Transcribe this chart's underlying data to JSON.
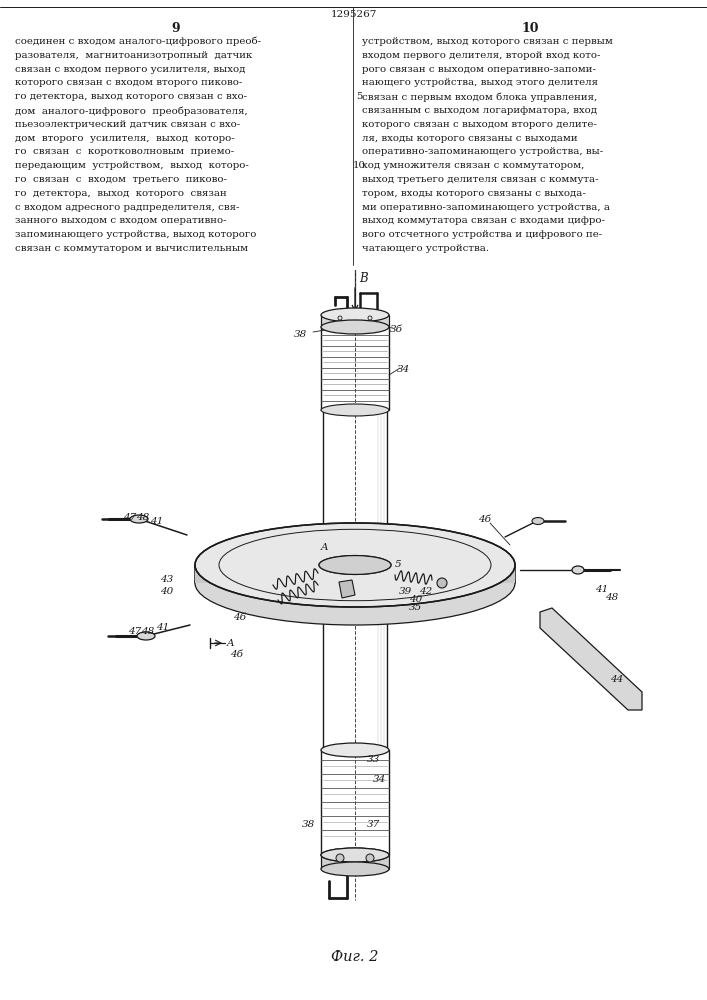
{
  "page_number_left": "9",
  "page_number_right": "10",
  "patent_number": "1295267",
  "left_text_lines": [
    "соединен с входом аналого-цифрового преоб-",
    "разователя,  магнитоанизотропный  датчик",
    "связан с входом первого усилителя, выход",
    "которого связан с входом второго пиково-",
    "го детектора, выход которого связан с вхо-",
    "дом  аналого-цифрового  преобразователя,",
    "пьезоэлектрический датчик связан с вхо-",
    "дом  второго  усилителя,  выход  которо-",
    "го  связан  с  коротковолновым  приемо-",
    "передающим  устройством,  выход  которо-",
    "го  связан  с  входом  третьего  пиково-",
    "го  детектора,  выход  которого  связан",
    "с входом адресного радпределителя, свя-",
    "занного выходом с входом оперативно-",
    "запоминающего устройства, выход которого",
    "связан с коммутатором и вычислительным"
  ],
  "right_text_lines": [
    "устройством, выход которого связан с первым",
    "входом первого делителя, второй вход кото-",
    "рого связан с выходом оперативно-запоми-",
    "нающего устройства, выход этого делителя",
    "связан с первым входом блока управления,",
    "связанным с выходом логарифматора, вход",
    "которого связан с выходом второго делите-",
    "ля, входы которого связаны с выходами",
    "оперативно-запоминающего устройства, вы-",
    "ход умножителя связан с коммутатором,",
    "выход третьего делителя связан с коммута-",
    "тором, входы которого связаны с выхода-",
    "ми оперативно-запоминающего устройства, а",
    "выход коммутатора связан с входами цифро-",
    "вого отсчетного устройства и цифрового пе-",
    "чатающего устройства."
  ],
  "line5_row": 4,
  "line10_row": 9,
  "figure_caption": "Фиг. 2",
  "bg_color": "#ffffff",
  "text_color": "#1a1a1a",
  "draw_color": "#1a1a1a"
}
